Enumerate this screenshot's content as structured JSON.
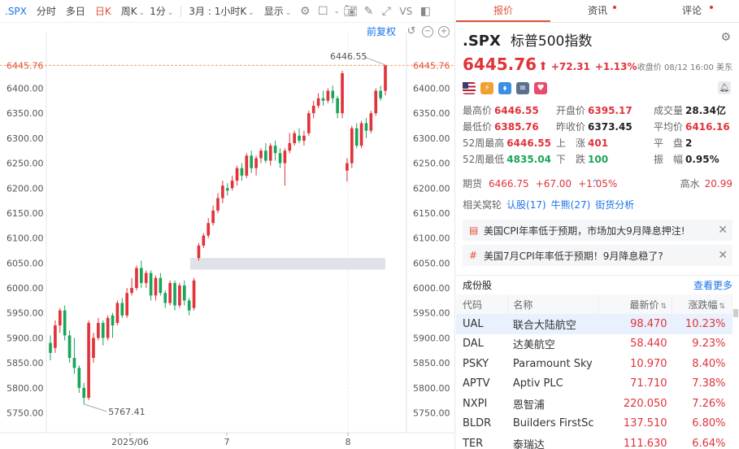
{
  "toolbar": {
    "ticker": ".SPX",
    "items": [
      "分时",
      "多日",
      "日K",
      "周K",
      "1分",
      "3月 : 1小时K",
      "显示"
    ],
    "vs": "VS",
    "restore": "前复权"
  },
  "chart_data": {
    "type": "candlestick",
    "y_ticks": [
      "6400.00",
      "6350.00",
      "6300.00",
      "6250.00",
      "6200.00",
      "6150.00",
      "6100.00",
      "6050.00",
      "6000.00",
      "5950.00",
      "5900.00",
      "5850.00",
      "5800.00",
      "5750.00"
    ],
    "x_ticks": [
      "2025/06",
      "7",
      "8"
    ],
    "current_price_label": "6445.76",
    "high_annotation": "6446.55",
    "low_annotation": "5767.41",
    "candles": [
      {
        "o": 5890,
        "c": 5870,
        "h": 5905,
        "l": 5855
      },
      {
        "o": 5880,
        "c": 5925,
        "h": 5935,
        "l": 5870
      },
      {
        "o": 5925,
        "c": 5955,
        "h": 5960,
        "l": 5910
      },
      {
        "o": 5955,
        "c": 5905,
        "h": 5965,
        "l": 5895
      },
      {
        "o": 5905,
        "c": 5860,
        "h": 5915,
        "l": 5850
      },
      {
        "o": 5860,
        "c": 5840,
        "h": 5900,
        "l": 5828
      },
      {
        "o": 5840,
        "c": 5800,
        "h": 5845,
        "l": 5790
      },
      {
        "o": 5800,
        "c": 5780,
        "h": 5810,
        "l": 5767.41
      },
      {
        "o": 5780,
        "c": 5930,
        "h": 5935,
        "l": 5775
      },
      {
        "o": 5860,
        "c": 5900,
        "h": 5910,
        "l": 5850
      },
      {
        "o": 5900,
        "c": 5930,
        "h": 5940,
        "l": 5895
      },
      {
        "o": 5930,
        "c": 5900,
        "h": 5935,
        "l": 5885
      },
      {
        "o": 5900,
        "c": 5940,
        "h": 5945,
        "l": 5895
      },
      {
        "o": 5945,
        "c": 5925,
        "h": 5950,
        "l": 5900
      },
      {
        "o": 5930,
        "c": 5970,
        "h": 5975,
        "l": 5925
      },
      {
        "o": 5970,
        "c": 5945,
        "h": 5980,
        "l": 5940
      },
      {
        "o": 5945,
        "c": 5990,
        "h": 6000,
        "l": 5940
      },
      {
        "o": 5990,
        "c": 6000,
        "h": 6020,
        "l": 5985
      },
      {
        "o": 6000,
        "c": 6040,
        "h": 6045,
        "l": 5995
      },
      {
        "o": 6040,
        "c": 6010,
        "h": 6055,
        "l": 6000
      },
      {
        "o": 6010,
        "c": 6030,
        "h": 6035,
        "l": 6000
      },
      {
        "o": 6030,
        "c": 5985,
        "h": 6035,
        "l": 5975
      },
      {
        "o": 5985,
        "c": 6020,
        "h": 6025,
        "l": 5975
      },
      {
        "o": 6020,
        "c": 5990,
        "h": 6030,
        "l": 5985
      },
      {
        "o": 5990,
        "c": 5970,
        "h": 5995,
        "l": 5960
      },
      {
        "o": 5970,
        "c": 6010,
        "h": 6015,
        "l": 5965
      },
      {
        "o": 6010,
        "c": 5965,
        "h": 6015,
        "l": 5955
      },
      {
        "o": 5965,
        "c": 6005,
        "h": 6010,
        "l": 5960
      },
      {
        "o": 6005,
        "c": 5975,
        "h": 6015,
        "l": 5965
      },
      {
        "o": 5975,
        "c": 5955,
        "h": 5980,
        "l": 5945
      },
      {
        "o": 5960,
        "c": 6015,
        "h": 6020,
        "l": 5955
      },
      {
        "o": 6060,
        "c": 6085,
        "h": 6090,
        "l": 6055
      },
      {
        "o": 6085,
        "c": 6105,
        "h": 6110,
        "l": 6080
      },
      {
        "o": 6105,
        "c": 6130,
        "h": 6140,
        "l": 6100
      },
      {
        "o": 6130,
        "c": 6155,
        "h": 6165,
        "l": 6125
      },
      {
        "o": 6155,
        "c": 6180,
        "h": 6190,
        "l": 6150
      },
      {
        "o": 6180,
        "c": 6205,
        "h": 6215,
        "l": 6170
      },
      {
        "o": 6200,
        "c": 6195,
        "h": 6210,
        "l": 6185
      },
      {
        "o": 6200,
        "c": 6215,
        "h": 6225,
        "l": 6195
      },
      {
        "o": 6215,
        "c": 6240,
        "h": 6245,
        "l": 6205
      },
      {
        "o": 6240,
        "c": 6225,
        "h": 6250,
        "l": 6215
      },
      {
        "o": 6225,
        "c": 6265,
        "h": 6270,
        "l": 6220
      },
      {
        "o": 6265,
        "c": 6240,
        "h": 6275,
        "l": 6230
      },
      {
        "o": 6240,
        "c": 6260,
        "h": 6265,
        "l": 6225
      },
      {
        "o": 6260,
        "c": 6275,
        "h": 6280,
        "l": 6250
      },
      {
        "o": 6275,
        "c": 6255,
        "h": 6290,
        "l": 6250
      },
      {
        "o": 6255,
        "c": 6285,
        "h": 6290,
        "l": 6245
      },
      {
        "o": 6285,
        "c": 6270,
        "h": 6295,
        "l": 6255
      },
      {
        "o": 6270,
        "c": 6250,
        "h": 6280,
        "l": 6240
      },
      {
        "o": 6250,
        "c": 6275,
        "h": 6280,
        "l": 6205
      },
      {
        "o": 6275,
        "c": 6290,
        "h": 6310,
        "l": 6270
      },
      {
        "o": 6290,
        "c": 6310,
        "h": 6315,
        "l": 6285
      },
      {
        "o": 6305,
        "c": 6295,
        "h": 6320,
        "l": 6290
      },
      {
        "o": 6295,
        "c": 6305,
        "h": 6315,
        "l": 6285
      },
      {
        "o": 6310,
        "c": 6350,
        "h": 6355,
        "l": 6305
      },
      {
        "o": 6350,
        "c": 6365,
        "h": 6375,
        "l": 6340
      },
      {
        "o": 6365,
        "c": 6380,
        "h": 6390,
        "l": 6360
      },
      {
        "o": 6380,
        "c": 6375,
        "h": 6395,
        "l": 6365
      },
      {
        "o": 6375,
        "c": 6395,
        "h": 6400,
        "l": 6370
      },
      {
        "o": 6395,
        "c": 6380,
        "h": 6405,
        "l": 6370
      },
      {
        "o": 6380,
        "c": 6350,
        "h": 6385,
        "l": 6340
      },
      {
        "o": 6350,
        "c": 6430,
        "h": 6435,
        "l": 6340
      },
      {
        "o": 6235,
        "c": 6250,
        "h": 6260,
        "l": 6213
      },
      {
        "o": 6250,
        "c": 6320,
        "h": 6325,
        "l": 6240
      },
      {
        "o": 6320,
        "c": 6285,
        "h": 6330,
        "l": 6280
      },
      {
        "o": 6285,
        "c": 6330,
        "h": 6335,
        "l": 6280
      },
      {
        "o": 6330,
        "c": 6315,
        "h": 6340,
        "l": 6300
      },
      {
        "o": 6315,
        "c": 6350,
        "h": 6355,
        "l": 6310
      },
      {
        "o": 6350,
        "c": 6395,
        "h": 6400,
        "l": 6345
      },
      {
        "o": 6395,
        "c": 6380,
        "h": 6405,
        "l": 6375
      },
      {
        "o": 6395,
        "c": 6445.76,
        "h": 6446.55,
        "l": 6385.76
      }
    ]
  },
  "tabs": [
    {
      "label": "报价",
      "dot": false
    },
    {
      "label": "资讯",
      "dot": true
    },
    {
      "label": "评论",
      "dot": true
    }
  ],
  "quote": {
    "symbol": ".SPX",
    "name": "标普500指数",
    "price": "6445.76",
    "arrow": "⬆",
    "change": "+72.31",
    "change_pct": "+1.13%",
    "close_time": "收盘价 08/12 16:00 美东"
  },
  "stats": [
    {
      "label": "最高价",
      "value": "6446.55",
      "color": "red"
    },
    {
      "label": "开盘价",
      "value": "6395.17",
      "color": "red"
    },
    {
      "label": "成交量",
      "value": "28.34亿",
      "color": "dark"
    },
    {
      "label": "最低价",
      "value": "6385.76",
      "color": "red"
    },
    {
      "label": "昨收价",
      "value": "6373.45",
      "color": "dark"
    },
    {
      "label": "平均价",
      "value": "6416.16",
      "color": "red"
    },
    {
      "label": "52周最高",
      "value": "6446.55",
      "color": "red"
    },
    {
      "label": "上　涨",
      "value": "401",
      "color": "red"
    },
    {
      "label": "平　盘",
      "value": "2",
      "color": "dark"
    },
    {
      "label": "52周最低",
      "value": "4835.04",
      "color": "green"
    },
    {
      "label": "下　跌",
      "value": "100",
      "color": "green"
    },
    {
      "label": "振　幅",
      "value": "0.95%",
      "color": "dark"
    }
  ],
  "futures": {
    "label": "期货",
    "price": "6466.75",
    "change": "+67.00",
    "change_pct": "+1.05%",
    "premium_label": "高水",
    "premium": "20.99"
  },
  "related": {
    "label": "相关窝轮",
    "links": [
      "认股(17)",
      "牛熊(27)",
      "街货分析"
    ]
  },
  "news": [
    {
      "icon": "doc-icon",
      "text": "美国CPI年率低于预期，市场加大9月降息押注!"
    },
    {
      "icon": "hash-icon",
      "text": "美国7月CPI年率低于预期！9月降息稳了?"
    }
  ],
  "constituents": {
    "title": "成份股",
    "more": "查看更多",
    "headers": [
      "代码",
      "名称",
      "最新价",
      "涨跌幅"
    ],
    "rows": [
      [
        "UAL",
        "联合大陆航空",
        "98.470",
        "10.23%"
      ],
      [
        "DAL",
        "达美航空",
        "58.440",
        "9.23%"
      ],
      [
        "PSKY",
        "Paramount Sky",
        "10.970",
        "8.40%"
      ],
      [
        "APTV",
        "Aptiv PLC",
        "71.710",
        "7.38%"
      ],
      [
        "NXPI",
        "恩智浦",
        "220.050",
        "7.26%"
      ],
      [
        "BLDR",
        "Builders FirstSc",
        "137.510",
        "6.80%"
      ],
      [
        "TER",
        "泰瑞达",
        "111.630",
        "6.64%"
      ]
    ]
  },
  "colors": {
    "up": "#e0333a",
    "down": "#19a55a",
    "accent": "#1a73e8"
  }
}
